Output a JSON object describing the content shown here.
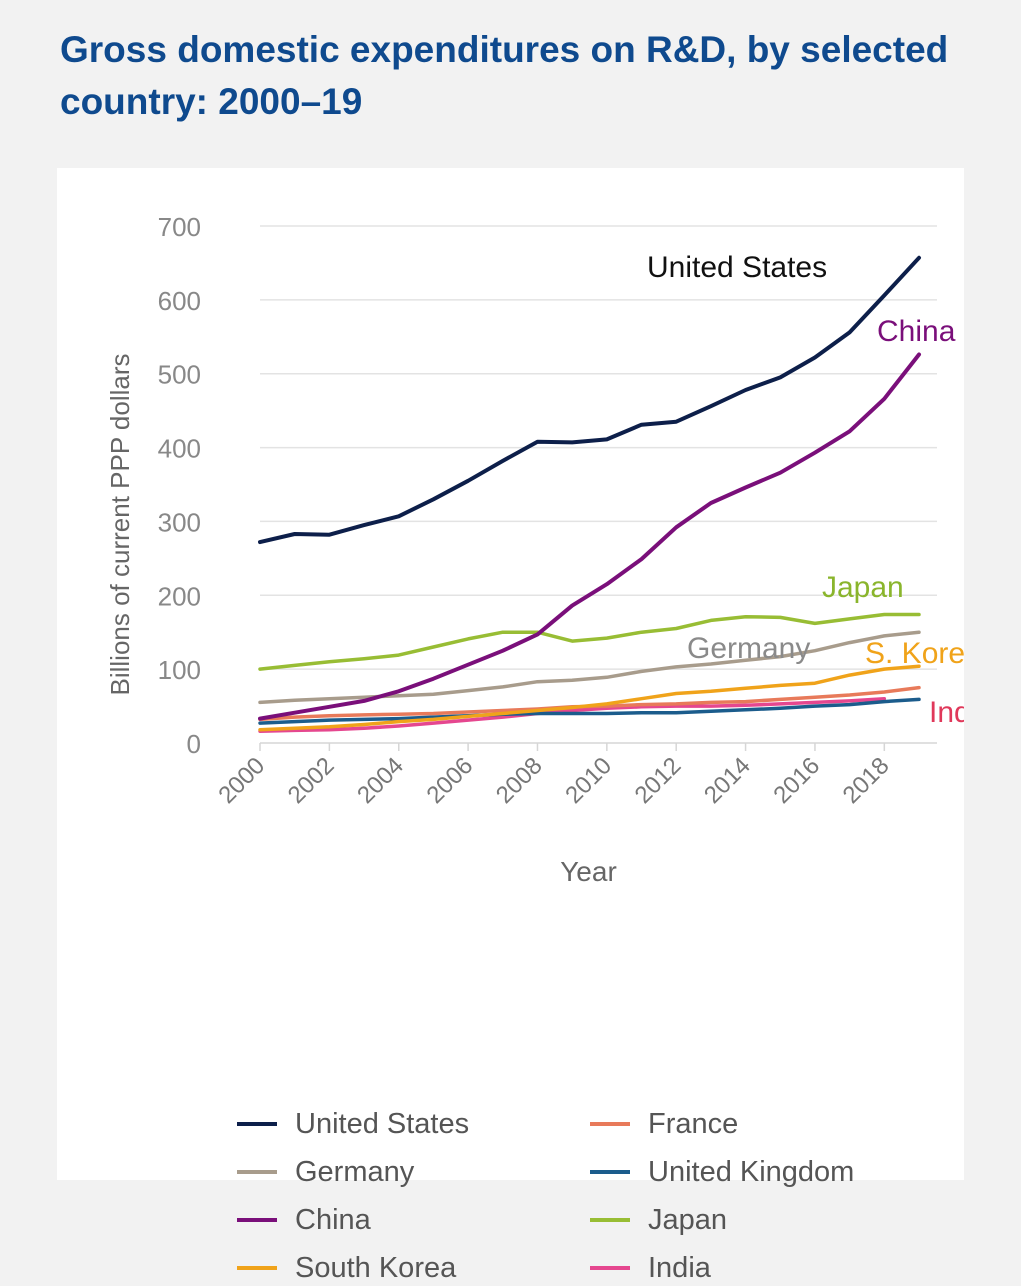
{
  "title": "Gross domestic expenditures on R&D, by selected country: 2000–19",
  "chart_data": {
    "type": "line",
    "xlabel": "Year",
    "ylabel": "Billions of current PPP dollars",
    "xlim": [
      2000,
      2019
    ],
    "ylim": [
      0,
      700
    ],
    "yticks": [
      0,
      100,
      200,
      300,
      400,
      500,
      600,
      700
    ],
    "xticks": [
      2000,
      2002,
      2004,
      2006,
      2008,
      2010,
      2012,
      2014,
      2016,
      2018
    ],
    "grid": "horizontal",
    "legend_position": "bottom",
    "series": [
      {
        "name": "United States",
        "color": "#0d1f4a",
        "label": "United States",
        "x": [
          2000,
          2001,
          2002,
          2003,
          2004,
          2005,
          2006,
          2007,
          2008,
          2009,
          2010,
          2011,
          2012,
          2013,
          2014,
          2015,
          2016,
          2017,
          2018,
          2019
        ],
        "values": [
          272,
          283,
          282,
          295,
          307,
          330,
          355,
          382,
          408,
          407,
          411,
          431,
          435,
          456,
          478,
          495,
          522,
          556,
          606,
          657
        ]
      },
      {
        "name": "Germany",
        "color": "#a89c8c",
        "label": "Germany",
        "x": [
          2000,
          2001,
          2002,
          2003,
          2004,
          2005,
          2006,
          2007,
          2008,
          2009,
          2010,
          2011,
          2012,
          2013,
          2014,
          2015,
          2016,
          2017,
          2018,
          2019
        ],
        "values": [
          55,
          58,
          60,
          62,
          64,
          66,
          71,
          76,
          83,
          85,
          89,
          97,
          103,
          107,
          112,
          117,
          125,
          136,
          145,
          150
        ]
      },
      {
        "name": "China",
        "color": "#7a0f7a",
        "label": "China",
        "x": [
          2000,
          2001,
          2002,
          2003,
          2004,
          2005,
          2006,
          2007,
          2008,
          2009,
          2010,
          2011,
          2012,
          2013,
          2014,
          2015,
          2016,
          2017,
          2018,
          2019
        ],
        "values": [
          33,
          41,
          49,
          57,
          70,
          87,
          106,
          125,
          147,
          186,
          215,
          249,
          292,
          325,
          346,
          366,
          393,
          422,
          466,
          526
        ]
      },
      {
        "name": "South Korea",
        "color": "#f0a31a",
        "label": "S. Korea",
        "x": [
          2000,
          2001,
          2002,
          2003,
          2004,
          2005,
          2006,
          2007,
          2008,
          2009,
          2010,
          2011,
          2012,
          2013,
          2014,
          2015,
          2016,
          2017,
          2018,
          2019
        ],
        "values": [
          18,
          20,
          22,
          25,
          29,
          32,
          36,
          40,
          44,
          48,
          53,
          60,
          67,
          70,
          74,
          78,
          81,
          92,
          100,
          104
        ]
      },
      {
        "name": "France",
        "color": "#e87a5a",
        "x": [
          2000,
          2001,
          2002,
          2003,
          2004,
          2005,
          2006,
          2007,
          2008,
          2009,
          2010,
          2011,
          2012,
          2013,
          2014,
          2015,
          2016,
          2017,
          2018,
          2019
        ],
        "values": [
          32,
          35,
          37,
          38,
          39,
          40,
          42,
          44,
          46,
          49,
          50,
          52,
          53,
          55,
          56,
          59,
          62,
          65,
          69,
          75
        ]
      },
      {
        "name": "United Kingdom",
        "color": "#1b5c8c",
        "x": [
          2000,
          2001,
          2002,
          2003,
          2004,
          2005,
          2006,
          2007,
          2008,
          2009,
          2010,
          2011,
          2012,
          2013,
          2014,
          2015,
          2016,
          2017,
          2018,
          2019
        ],
        "values": [
          27,
          29,
          31,
          32,
          33,
          35,
          37,
          39,
          40,
          40,
          40,
          41,
          41,
          43,
          45,
          47,
          50,
          52,
          56,
          59
        ]
      },
      {
        "name": "Japan",
        "color": "#98bd34",
        "label": "Japan",
        "x": [
          2000,
          2001,
          2002,
          2003,
          2004,
          2005,
          2006,
          2007,
          2008,
          2009,
          2010,
          2011,
          2012,
          2013,
          2014,
          2015,
          2016,
          2017,
          2018,
          2019
        ],
        "values": [
          100,
          105,
          110,
          114,
          119,
          130,
          141,
          150,
          150,
          138,
          142,
          150,
          155,
          166,
          171,
          170,
          162,
          168,
          174,
          174
        ]
      },
      {
        "name": "India",
        "color": "#e5478f",
        "label": "India",
        "x": [
          2000,
          2001,
          2002,
          2003,
          2004,
          2005,
          2006,
          2007,
          2008,
          2009,
          2010,
          2011,
          2012,
          2013,
          2014,
          2015,
          2016,
          2017,
          2018
        ],
        "values": [
          16,
          17,
          18,
          20,
          23,
          27,
          31,
          35,
          40,
          44,
          47,
          49,
          50,
          50,
          51,
          53,
          55,
          57,
          60
        ]
      }
    ],
    "annotations": [
      {
        "text": "United States",
        "color": "#111111"
      },
      {
        "text": "China",
        "color": "#7a0f7a"
      },
      {
        "text": "Japan",
        "color": "#8ab52c"
      },
      {
        "text": "Germany",
        "color": "#8a8a8a"
      },
      {
        "text": "S. Korea",
        "color": "#f0a31a"
      },
      {
        "text": "India",
        "color": "#e0385a"
      }
    ]
  },
  "legend": [
    {
      "label": "United States",
      "color": "#0d1f4a"
    },
    {
      "label": "France",
      "color": "#e87a5a"
    },
    {
      "label": "Germany",
      "color": "#a89c8c"
    },
    {
      "label": "United Kingdom",
      "color": "#1b5c8c"
    },
    {
      "label": "China",
      "color": "#7a0f7a"
    },
    {
      "label": "Japan",
      "color": "#98bd34"
    },
    {
      "label": "South Korea",
      "color": "#f0a31a"
    },
    {
      "label": "India",
      "color": "#e5478f"
    }
  ]
}
